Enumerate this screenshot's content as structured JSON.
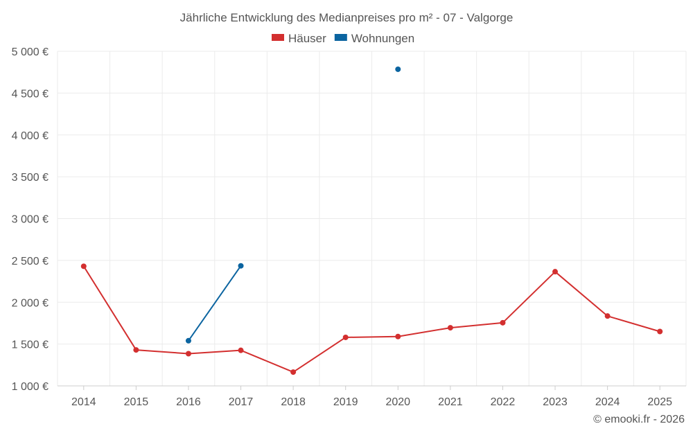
{
  "chart_data": {
    "type": "line",
    "title": "Jährliche Entwicklung des Medianpreises pro m² - 07 - Valgorge",
    "categories": [
      "2014",
      "2015",
      "2016",
      "2017",
      "2018",
      "2019",
      "2020",
      "2021",
      "2022",
      "2023",
      "2024",
      "2025"
    ],
    "series": [
      {
        "name": "Häuser",
        "color": "#d32f2f",
        "values": [
          2430,
          1430,
          1385,
          1425,
          1165,
          1580,
          1590,
          1695,
          1755,
          2365,
          1835,
          1650
        ]
      },
      {
        "name": "Wohnungen",
        "color": "#0b64a0",
        "values": [
          null,
          null,
          1540,
          2435,
          null,
          null,
          4785,
          null,
          null,
          null,
          null,
          null
        ]
      }
    ],
    "ylim": [
      1000,
      5000
    ],
    "yticks": [
      1000,
      1500,
      2000,
      2500,
      3000,
      3500,
      4000,
      4500,
      5000
    ],
    "ytick_labels": [
      "1 000 €",
      "1 500 €",
      "2 000 €",
      "2 500 €",
      "3 000 €",
      "3 500 €",
      "4 000 €",
      "4 500 €",
      "5 000 €"
    ],
    "xlabel": "",
    "ylabel": "",
    "grid": true,
    "legend_position": "top-center",
    "credit": "© emooki.fr - 2026"
  }
}
